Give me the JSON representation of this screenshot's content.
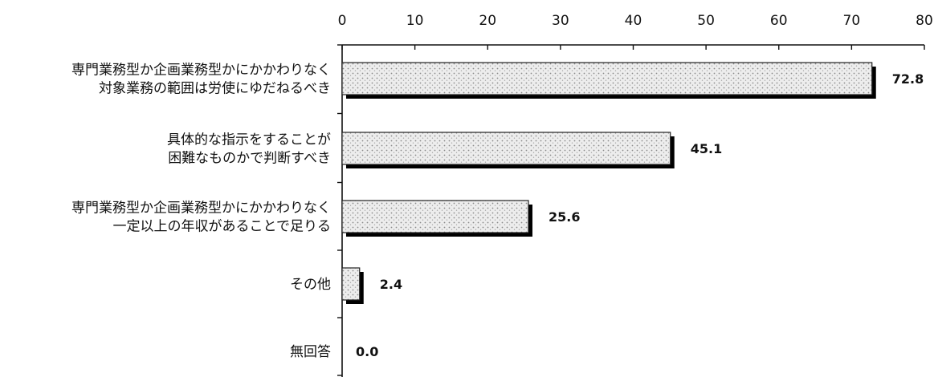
{
  "chart_data": {
    "type": "bar",
    "orientation": "horizontal",
    "title": "",
    "xlabel": "",
    "ylabel": "",
    "xlim": [
      0,
      80
    ],
    "xticks": [
      "0",
      "10",
      "20",
      "30",
      "40",
      "50",
      "60",
      "70",
      "80"
    ],
    "categories": [
      [
        "専門業務型か企画業務型かにかかわりなく",
        "対象業務の範囲は労使にゆだねるべき"
      ],
      [
        "具体的な指示をすることが",
        "困難なものかで判断すべき"
      ],
      [
        "専門業務型か企画業務型かにかかわりなく",
        "一定以上の年収があることで足りる"
      ],
      [
        "その他"
      ],
      [
        "無回答"
      ]
    ],
    "values": [
      72.8,
      45.1,
      25.6,
      2.4,
      0.0
    ],
    "value_labels": [
      "72.8",
      "45.1",
      "25.6",
      "2.4",
      "0.0"
    ],
    "grid": false,
    "legend": "none",
    "colors": {
      "bar_fill": "#e6e6e6",
      "bar_shadow": "#000000",
      "text": "#111111"
    }
  }
}
